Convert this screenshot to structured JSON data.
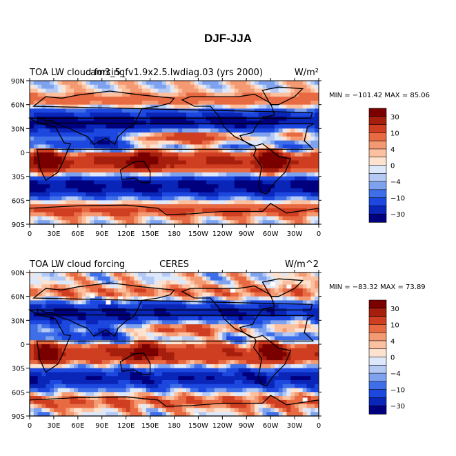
{
  "figure": {
    "title": "DJF-JJA",
    "colorbar": {
      "labels": [
        "30",
        "10",
        "4",
        "0",
        "−4",
        "−10",
        "−30"
      ],
      "levels": [
        -30,
        -20,
        -10,
        -6,
        -4,
        -2,
        0,
        2,
        4,
        6,
        10,
        20,
        30
      ],
      "colors": [
        "#00007e",
        "#0a26b8",
        "#1d48e0",
        "#3f6fe8",
        "#7fa2ee",
        "#b4c9f4",
        "#dde9fa",
        "#fde2cf",
        "#fbc0a0",
        "#f49a72",
        "#e86a43",
        "#cf3e21",
        "#a61e0c",
        "#7a0000"
      ]
    }
  },
  "chart_data": [
    {
      "type": "heatmap",
      "left_title": "TOA LW cloud forcing",
      "center_title": "cam3_5_fv1.9x2.5.lwdiag.03 (yrs 2000)",
      "units": "W/m²",
      "stats_text": "MIN = −101.42 MAX =  85.06",
      "min": -101.42,
      "max": 85.06,
      "xlabel_ticks": [
        "0",
        "30E",
        "60E",
        "90E",
        "120E",
        "150E",
        "180",
        "150W",
        "120W",
        "90W",
        "60W",
        "30W",
        "0"
      ],
      "ylabel_ticks": [
        "90N",
        "60N",
        "30N",
        "0",
        "30S",
        "60S",
        "90S"
      ],
      "lon_range": [
        0,
        360
      ],
      "lat_range": [
        -90,
        90
      ]
    },
    {
      "type": "heatmap",
      "left_title": "TOA LW cloud forcing",
      "center_title": "CERES",
      "units": "W/m^2",
      "stats_text": "MIN = −83.32 MAX =  73.89",
      "min": -83.32,
      "max": 73.89,
      "xlabel_ticks": [
        "0",
        "30E",
        "60E",
        "90E",
        "120E",
        "150E",
        "180",
        "150W",
        "120W",
        "90W",
        "60W",
        "30W",
        "0"
      ],
      "ylabel_ticks": [
        "90N",
        "60N",
        "30N",
        "0",
        "30S",
        "60S",
        "90S"
      ],
      "lon_range": [
        0,
        360
      ],
      "lat_range": [
        -90,
        90
      ]
    }
  ]
}
